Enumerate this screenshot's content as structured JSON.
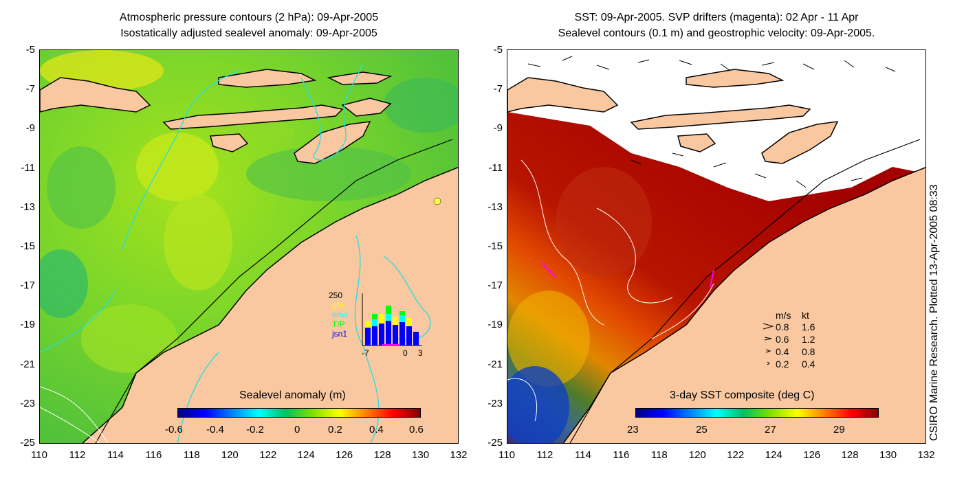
{
  "left_panel": {
    "title_line1": "Atmospheric pressure contours (2 hPa): 09-Apr-2005",
    "title_line2": "Isostatically adjusted sealevel anomaly: 09-Apr-2005",
    "colorbar": {
      "title": "Sealevel anomaly (m)",
      "ticks": [
        "-0.6",
        "-0.4",
        "-0.2",
        "0",
        "0.2",
        "0.4",
        "0.6"
      ],
      "range": [
        -0.6,
        0.6
      ]
    },
    "histogram": {
      "ymax_label": "250",
      "legend": [
        {
          "label": "gfo",
          "color": "#ffff00"
        },
        {
          "label": "envi",
          "color": "#00ffff"
        },
        {
          "label": "T/P",
          "color": "#00ff00"
        },
        {
          "label": "jsn1",
          "color": "#0000ff"
        }
      ],
      "x_ticks": [
        "-7",
        "0",
        "3"
      ]
    }
  },
  "right_panel": {
    "title_line1": "SST: 09-Apr-2005. SVP drifters (magenta): 02 Apr - 11 Apr",
    "title_line2": "Sealevel contours (0.1 m) and geostrophic velocity: 09-Apr-2005.",
    "colorbar": {
      "title": "3-day SST composite (deg C)",
      "ticks": [
        "23",
        "25",
        "27",
        "29"
      ],
      "range": [
        23,
        30
      ]
    },
    "velocity_legend": {
      "header_ms": "m/s",
      "header_kt": "kt",
      "rows": [
        {
          "ms": "0.8",
          "kt": "1.6"
        },
        {
          "ms": "0.6",
          "kt": "1.2"
        },
        {
          "ms": "0.4",
          "kt": "0.8"
        },
        {
          "ms": "0.2",
          "kt": "0.4"
        }
      ]
    }
  },
  "axes": {
    "lat_ticks": [
      "-5",
      "-7",
      "-9",
      "-11",
      "-13",
      "-15",
      "-17",
      "-19",
      "-21",
      "-23",
      "-25"
    ],
    "lon_ticks": [
      "110",
      "112",
      "114",
      "116",
      "118",
      "120",
      "122",
      "124",
      "126",
      "128",
      "130",
      "132"
    ]
  },
  "credit": "CSIRO Marine Research. Plotted 13-Apr-2005 08:33",
  "colors": {
    "land": "#f9c8a0",
    "ocean_green": "#6fd42a",
    "sst_warm": "#b00000"
  }
}
